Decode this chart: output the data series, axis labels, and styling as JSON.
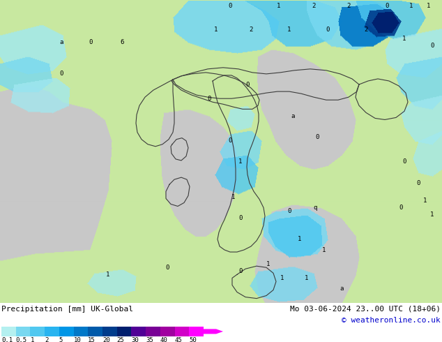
{
  "title_left": "Precipitation [mm] UK-Global",
  "title_right_line1": "Mo 03-06-2024 23..00 UTC (18+06)",
  "title_right_line2": "© weatheronline.co.uk",
  "colorbar_labels": [
    "0.1",
    "0.5",
    "1",
    "2",
    "5",
    "10",
    "15",
    "20",
    "25",
    "30",
    "35",
    "40",
    "45",
    "50"
  ],
  "colorbar_colors": [
    "#b4f0f0",
    "#78d8f0",
    "#50c8f0",
    "#28b4f0",
    "#0096e6",
    "#0078c8",
    "#005aaa",
    "#003c8c",
    "#001e6e",
    "#500096",
    "#780096",
    "#a000a0",
    "#d200c8",
    "#ff00ff"
  ],
  "land_color": "#c8e8a0",
  "sea_color_med": "#c8c8c8",
  "sea_color_adria": "#c8c8c8",
  "border_color": "#3c3c3c",
  "fig_bg": "#ffffff",
  "map_bg": "#c8c8c8",
  "precip_light_cyan": "#a0e8f0",
  "precip_cyan": "#50c8f0",
  "precip_blue": "#0078c8",
  "precip_dark_blue": "#003c8c",
  "precip_darkest_blue": "#001e6e"
}
